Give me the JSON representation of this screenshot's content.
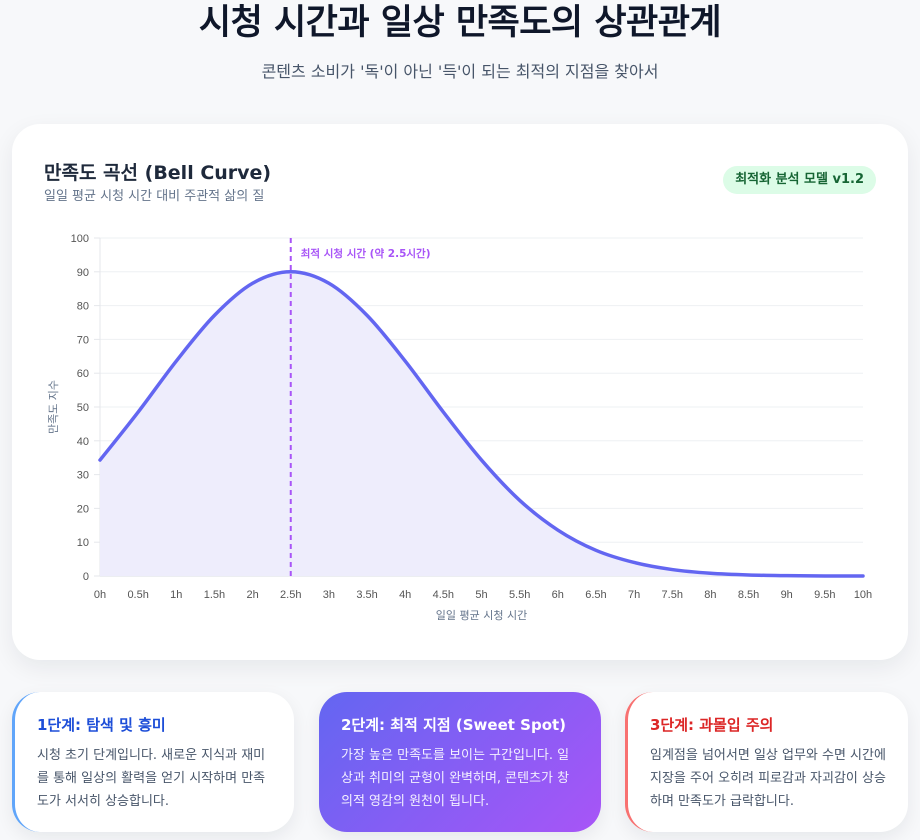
{
  "header": {
    "title": "시청 시간과 일상 만족도의 상관관계",
    "subtitle": "콘텐츠 소비가 '독'이 아닌 '득'이 되는 최적의 지점을 찾아서"
  },
  "card": {
    "title": "만족도 곡선 (Bell Curve)",
    "subtitle": "일일 평균 시청 시간 대비 주관적 삶의 질",
    "badge": "최적화 분석 모델 v1.2"
  },
  "colors": {
    "line": "#6366f1",
    "fill": "#eeedfc",
    "annotation": "#a855f7",
    "badge_bg": "#dcfce7",
    "badge_text": "#166534",
    "stage1_accent": "#60a5fa",
    "stage3_accent": "#f87171"
  },
  "chart_data": {
    "type": "area",
    "title": "만족도 곡선 (Bell Curve)",
    "subtitle": "일일 평균 시청 시간 대비 주관적 삶의 질",
    "xlabel": "일일 평균 시청 시간",
    "ylabel": "만족도 지수",
    "categories": [
      "0h",
      "0.5h",
      "1h",
      "1.5h",
      "2h",
      "2.5h",
      "3h",
      "3.5h",
      "4h",
      "4.5h",
      "5h",
      "5.5h",
      "6h",
      "6.5h",
      "7h",
      "7.5h",
      "8h",
      "8.5h",
      "9h",
      "9.5h",
      "10h"
    ],
    "x": [
      0,
      0.5,
      1,
      1.5,
      2,
      2.5,
      3,
      3.5,
      4,
      4.5,
      5,
      5.5,
      6,
      6.5,
      7,
      7.5,
      8,
      8.5,
      9,
      9.5,
      10
    ],
    "series": [
      {
        "name": "만족도 지수",
        "values": [
          34.3,
          48.5,
          63.6,
          77.1,
          86.6,
          90,
          86.6,
          77.1,
          63.6,
          48.5,
          34.3,
          22.4,
          13.6,
          7.6,
          4.0,
          1.9,
          0.8,
          0.3,
          0.1,
          0.0,
          0.0
        ]
      }
    ],
    "ylim": [
      0,
      100
    ],
    "yticks": [
      0,
      10,
      20,
      30,
      40,
      50,
      60,
      70,
      80,
      90,
      100
    ],
    "grid": true,
    "legend": "none",
    "annotations": [
      {
        "type": "vline",
        "x": 2.5,
        "label": "최적 시청 시간 (약 2.5시간)"
      }
    ]
  },
  "stages": [
    {
      "title": "1단계: 탐색 및 흥미",
      "body": "시청 초기 단계입니다. 새로운 지식과 재미를 통해 일상의 활력을 얻기 시작하며 만족도가 서서히 상승합니다."
    },
    {
      "title": "2단계: 최적 지점 (Sweet Spot)",
      "body": "가장 높은 만족도를 보이는 구간입니다. 일상과 취미의 균형이 완벽하며, 콘텐츠가 창의적 영감의 원천이 됩니다."
    },
    {
      "title": "3단계: 과몰입 주의",
      "body": "임계점을 넘어서면 일상 업무와 수면 시간에 지장을 주어 오히려 피로감과 자괴감이 상승하며 만족도가 급락합니다."
    }
  ]
}
